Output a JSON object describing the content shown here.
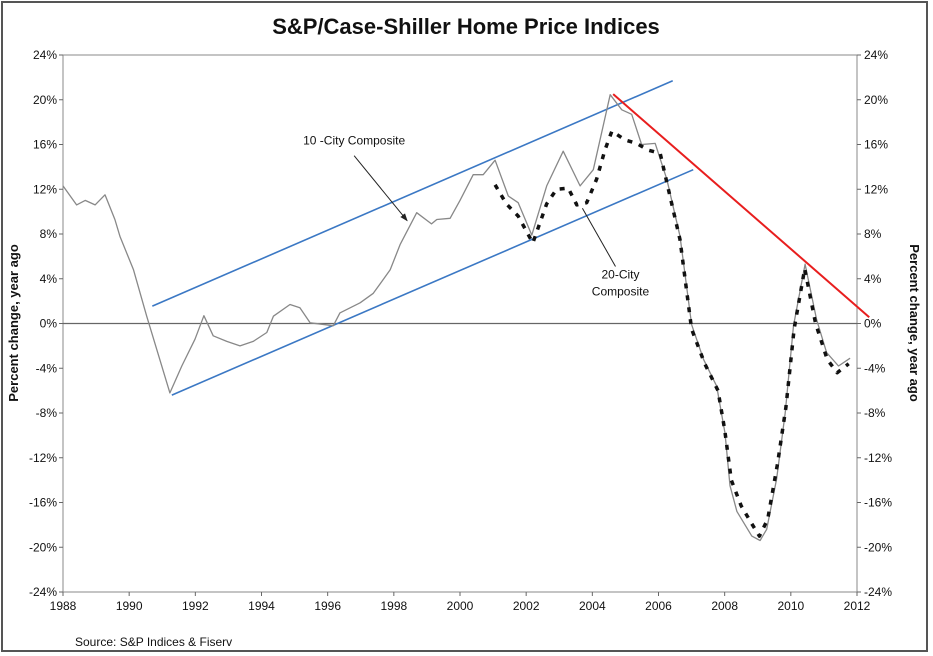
{
  "chart_data": {
    "type": "line",
    "title": "S&P/Case-Shiller Home Price Indices",
    "ylabel_left": "Percent change, year ago",
    "ylabel_right": "Percent change, year ago",
    "source": "Source: S&P Indices & Fiserv",
    "xlim": [
      1988,
      2012
    ],
    "ylim": [
      -24,
      24
    ],
    "x_ticks": [
      "1988",
      "1990",
      "1992",
      "1994",
      "1996",
      "1998",
      "2000",
      "2002",
      "2004",
      "2006",
      "2008",
      "2010",
      "2012"
    ],
    "y_ticks": [
      "24%",
      "20%",
      "16%",
      "12%",
      "8%",
      "4%",
      "0%",
      "-4%",
      "-8%",
      "-12%",
      "-16%",
      "-20%",
      "-24%"
    ],
    "series": [
      {
        "name": "10 -City Composite",
        "style": "solid",
        "color": "#888888",
        "x": [
          1988.0,
          1988.41,
          1988.67,
          1988.97,
          1989.27,
          1989.57,
          1989.72,
          1990.13,
          1990.53,
          1991.23,
          1991.59,
          1991.99,
          1992.26,
          1992.54,
          1992.95,
          1993.35,
          1993.75,
          1994.16,
          1994.36,
          1994.86,
          1995.16,
          1995.47,
          1996.17,
          1996.37,
          1996.98,
          1997.38,
          1997.89,
          1998.19,
          1998.69,
          1999.14,
          1999.3,
          1999.7,
          2000.0,
          2000.4,
          2000.7,
          2001.06,
          2001.46,
          2001.76,
          2002.17,
          2002.62,
          2003.12,
          2003.63,
          2004.03,
          2004.54,
          2004.89,
          2005.19,
          2005.49,
          2005.9,
          2006.25,
          2006.65,
          2007.0,
          2007.36,
          2007.76,
          2008.01,
          2008.16,
          2008.37,
          2008.82,
          2009.07,
          2009.27,
          2009.57,
          2009.83,
          2010.08,
          2010.43,
          2010.78,
          2011.08,
          2011.44,
          2011.79
        ],
        "y": [
          12.3,
          10.6,
          11.0,
          10.6,
          11.5,
          9.3,
          7.8,
          4.8,
          0.65,
          -6.2,
          -3.8,
          -1.4,
          0.7,
          -1.1,
          -1.6,
          -2.0,
          -1.6,
          -0.8,
          0.65,
          1.7,
          1.4,
          0.06,
          -0.2,
          0.95,
          1.85,
          2.7,
          4.8,
          7.05,
          9.9,
          8.9,
          9.3,
          9.4,
          11.0,
          13.3,
          13.3,
          14.6,
          11.4,
          10.8,
          7.9,
          12.3,
          15.4,
          12.3,
          13.75,
          20.45,
          19.1,
          18.7,
          16.0,
          16.1,
          12.9,
          7.8,
          -0.1,
          -3.2,
          -5.6,
          -9.8,
          -14.5,
          -16.8,
          -19.0,
          -19.4,
          -18.4,
          -13.9,
          -8.0,
          -0.2,
          5.3,
          0.35,
          -2.6,
          -3.8,
          -3.1
        ]
      },
      {
        "name": "20-City Composite",
        "style": "dashed",
        "color": "#111111",
        "x": [
          2001.06,
          2001.4,
          2001.76,
          2002.2,
          2002.62,
          2002.92,
          2003.27,
          2003.53,
          2003.83,
          2004.13,
          2004.38,
          2004.59,
          2004.99,
          2005.34,
          2005.69,
          2006.05,
          2006.3,
          2006.65,
          2007.0,
          2007.4,
          2007.8,
          2008.0,
          2008.2,
          2008.5,
          2008.8,
          2009.05,
          2009.3,
          2009.6,
          2009.85,
          2010.1,
          2010.42,
          2010.75,
          2011.1,
          2011.4,
          2011.75
        ],
        "y": [
          12.4,
          10.7,
          9.6,
          7.2,
          10.7,
          12.0,
          12.1,
          10.6,
          10.8,
          12.9,
          15.5,
          17.2,
          16.4,
          16.1,
          15.5,
          15.2,
          12.0,
          7.5,
          -0.5,
          -3.6,
          -6.0,
          -9.5,
          -14.0,
          -16.3,
          -17.8,
          -19.0,
          -17.5,
          -12.5,
          -7.5,
          -0.5,
          4.9,
          0.0,
          -3.2,
          -4.4,
          -3.6
        ]
      }
    ],
    "trend_lines": [
      {
        "name": "upper-channel",
        "color": "#3b78c4",
        "from": [
          1990.7,
          1.55
        ],
        "to": [
          2006.43,
          21.7
        ]
      },
      {
        "name": "lower-channel",
        "color": "#3b78c4",
        "from": [
          1991.29,
          -6.4
        ],
        "to": [
          2007.05,
          13.75
        ]
      },
      {
        "name": "downtrend",
        "color": "#e81e1e",
        "from": [
          2004.63,
          20.5
        ],
        "to": [
          2012.37,
          0.56
        ]
      }
    ],
    "annotations": [
      {
        "text": "10 -City Composite",
        "lines": [
          "10 -City Composite"
        ],
        "arrow_from": [
          1996.8,
          15.0
        ],
        "arrow_to": [
          1998.4,
          9.2
        ]
      },
      {
        "text": "20-City Composite",
        "lines": [
          "20-City",
          "Composite"
        ],
        "arrow_from": [
          2004.7,
          5.1
        ],
        "arrow_to": [
          2003.7,
          10.3
        ]
      }
    ],
    "grid": false,
    "legend": "none"
  }
}
